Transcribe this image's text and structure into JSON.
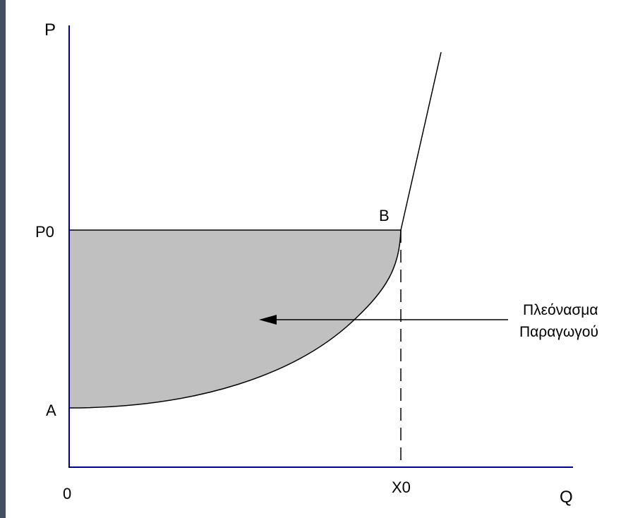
{
  "diagram": {
    "axis_labels": {
      "y_axis": "P",
      "x_axis": "Q",
      "origin": "0",
      "price_level": "P0",
      "quantity_level": "X0"
    },
    "points": {
      "a": "A",
      "b": "B"
    },
    "annotation": {
      "line1": "Πλεόνασμα",
      "line2": "Παραγωγού"
    },
    "colors": {
      "background": "#44505f",
      "canvas": "#ffffff",
      "axes": "#000080",
      "shaded_area": "#c0c0c0",
      "lines": "#000000"
    }
  }
}
